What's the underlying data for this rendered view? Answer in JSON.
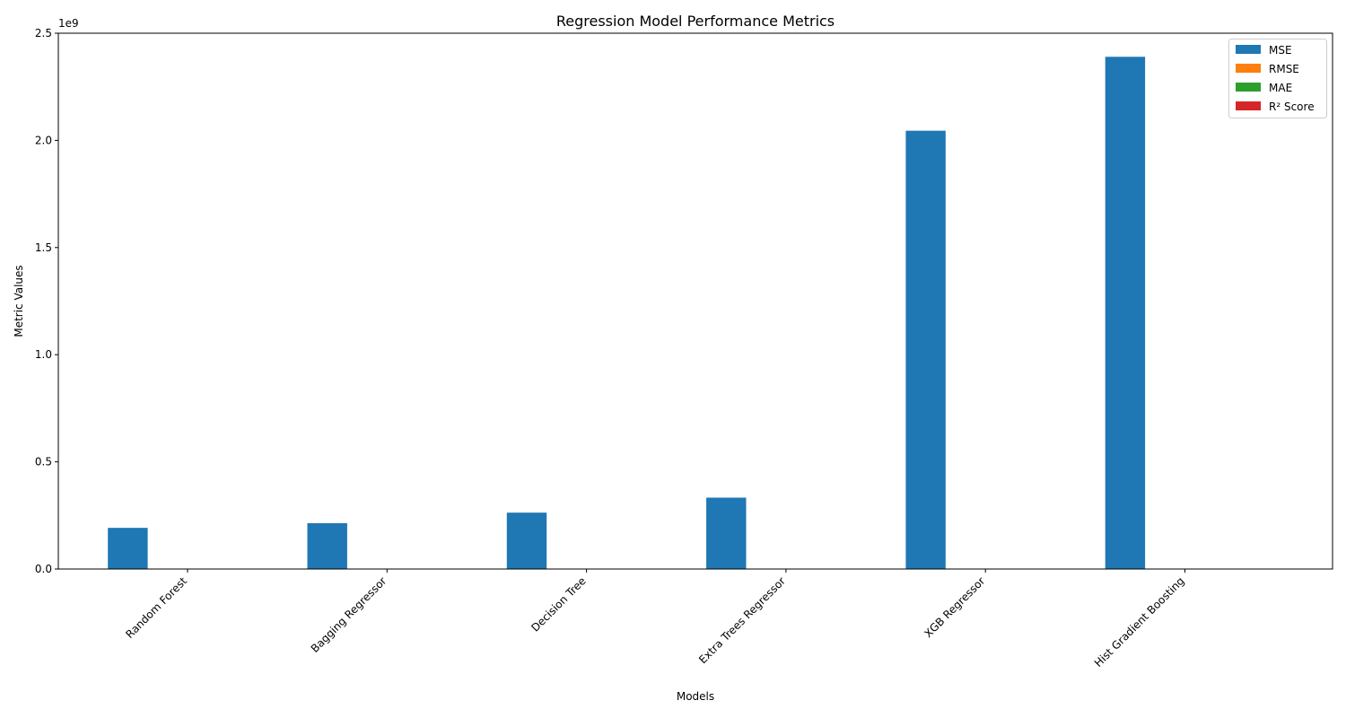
{
  "chart_data": {
    "type": "bar",
    "title": "Regression Model Performance Metrics",
    "xlabel": "Models",
    "ylabel": "Metric Values",
    "axis_multiplier": "1e9",
    "ylim": [
      0,
      2500000000
    ],
    "y_ticks": [
      {
        "value": 0,
        "label": "0.0"
      },
      {
        "value": 500000000,
        "label": "0.5"
      },
      {
        "value": 1000000000,
        "label": "1.0"
      },
      {
        "value": 1500000000,
        "label": "1.5"
      },
      {
        "value": 2000000000,
        "label": "2.0"
      },
      {
        "value": 2500000000,
        "label": "2.5"
      }
    ],
    "categories": [
      "Random Forest",
      "Bagging Regressor",
      "Decision Tree",
      "Extra Trees Regressor",
      "XGB Regressor",
      "Hist Gradient Boosting"
    ],
    "series": [
      {
        "name": "MSE",
        "color": "#1f77b4",
        "values": [
          192000000,
          214000000,
          263000000,
          333000000,
          2045000000,
          2390000000
        ]
      },
      {
        "name": "RMSE",
        "color": "#ff7f0e",
        "values": [
          13900,
          14600,
          16200,
          18200,
          45200,
          48900
        ]
      },
      {
        "name": "MAE",
        "color": "#2ca02c",
        "values": [
          7500,
          8000,
          9000,
          10500,
          30000,
          33000
        ]
      },
      {
        "name": "R² Score",
        "color": "#d62728",
        "values": [
          0.97,
          0.96,
          0.95,
          0.94,
          0.62,
          0.56
        ]
      }
    ],
    "legend_position": "top-right",
    "grid": false
  }
}
